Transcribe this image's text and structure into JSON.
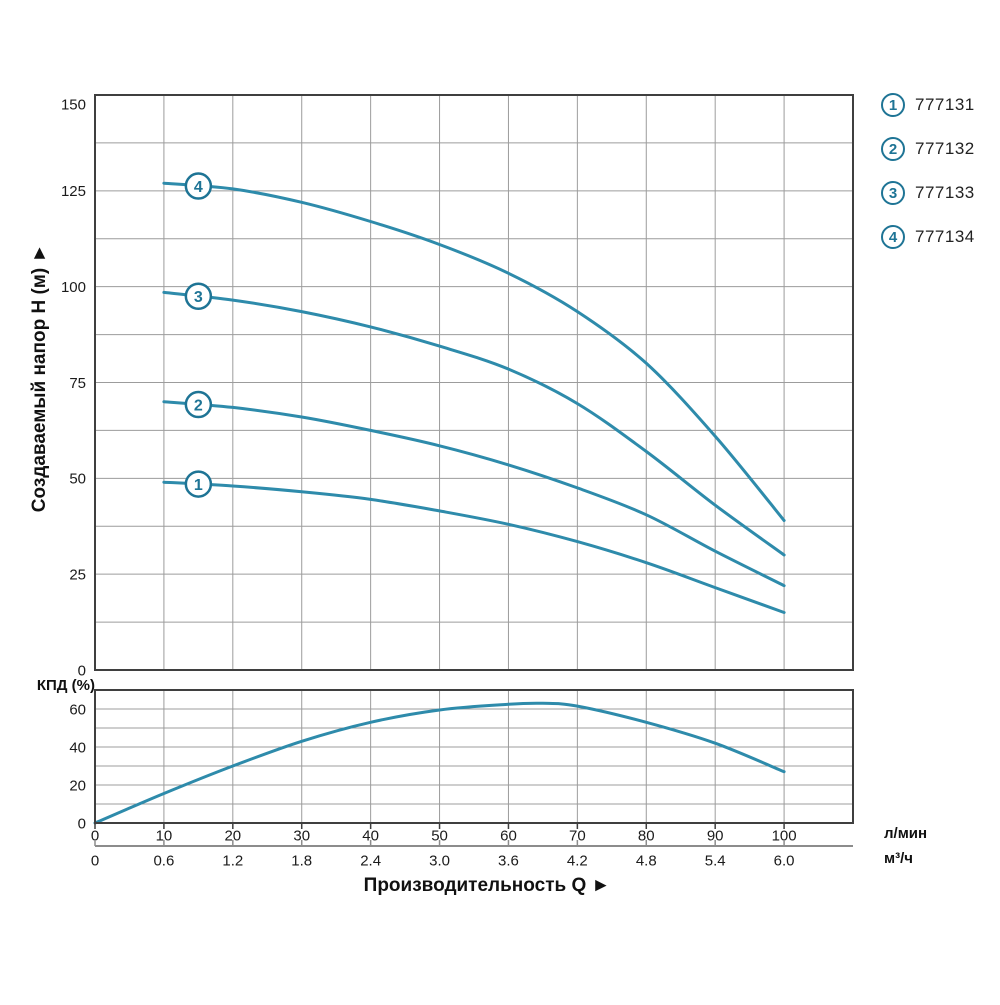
{
  "colors": {
    "curve": "#2e8bab",
    "accent": "#1e7495",
    "grid": "#9c9c9c",
    "border": "#3f3f3f",
    "axis_secondary": "#8c8c8c",
    "text": "#1b1b1b"
  },
  "y_axis_title": "Создаваемый напор H (м) ►",
  "x_axis_title": "Производительность Q  ►",
  "kpd_label": "КПД (%)",
  "units": {
    "lmin": "л/мин",
    "m3h": "м³/ч"
  },
  "legend": {
    "items": [
      {
        "num": "1",
        "model": "777131"
      },
      {
        "num": "2",
        "model": "777132"
      },
      {
        "num": "3",
        "model": "777133"
      },
      {
        "num": "4",
        "model": "777134"
      }
    ]
  },
  "chart_data": [
    {
      "type": "line",
      "title": "",
      "ylabel": "Создаваемый напор H (м)",
      "xlabel": "Производительность Q",
      "x_units": [
        "л/мин",
        "м³/ч"
      ],
      "xlim": [
        0,
        110
      ],
      "ylim": [
        0,
        150
      ],
      "grid": "on",
      "x_grid_step": 10,
      "y_grid_step": 12.5,
      "y_tick_labels": [
        "0",
        "25",
        "50",
        "75",
        "100",
        "125",
        "150"
      ],
      "x_ticks_lmin": [
        0,
        10,
        20,
        30,
        40,
        50,
        60,
        70,
        80,
        90,
        100
      ],
      "x_tick_labels_lmin": [
        "0",
        "10",
        "20",
        "30",
        "40",
        "50",
        "60",
        "70",
        "80",
        "90",
        "100"
      ],
      "x_tick_labels_m3h": [
        "0",
        "0.6",
        "1.2",
        "1.8",
        "2.4",
        "3.0",
        "3.6",
        "4.2",
        "4.8",
        "5.4",
        "6.0"
      ],
      "legend_position": "right",
      "x": [
        10,
        20,
        30,
        40,
        50,
        60,
        70,
        80,
        90,
        100
      ],
      "series_label_x": 15,
      "series": [
        {
          "name": "1",
          "model": "777131",
          "values": [
            49,
            48,
            46.5,
            44.5,
            41.5,
            38,
            33.5,
            28,
            21.5,
            15
          ]
        },
        {
          "name": "2",
          "model": "777132",
          "values": [
            70,
            68.5,
            66,
            62.5,
            58.5,
            53.5,
            47.5,
            40.5,
            31,
            22
          ]
        },
        {
          "name": "3",
          "model": "777133",
          "values": [
            98.5,
            96.5,
            93.5,
            89.5,
            84.5,
            78.5,
            69.5,
            57,
            43,
            30
          ]
        },
        {
          "name": "4",
          "model": "777134",
          "values": [
            127,
            125.5,
            122,
            117,
            111,
            103.5,
            93.5,
            80,
            61,
            39
          ]
        }
      ]
    },
    {
      "type": "line",
      "title": "",
      "ylabel": "КПД (%)",
      "xlabel": "Производительность Q",
      "xlim": [
        0,
        110
      ],
      "ylim": [
        0,
        70
      ],
      "grid": "on",
      "x_grid_step": 10,
      "y_grid_step": 10,
      "y_tick_labels": [
        "0",
        "20",
        "40",
        "60"
      ],
      "x": [
        0,
        10,
        20,
        30,
        40,
        50,
        60,
        65,
        70,
        80,
        90,
        100
      ],
      "values": [
        0,
        15.5,
        30,
        43,
        53,
        59.5,
        62.5,
        63,
        61.5,
        53,
        42,
        27
      ]
    }
  ]
}
